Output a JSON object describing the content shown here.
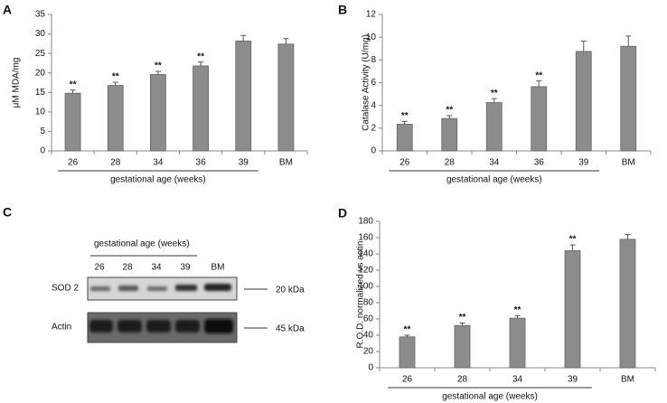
{
  "chart_data": [
    {
      "type": "bar",
      "panel": "A",
      "ylabel": "μM MDA/mg",
      "xlabel": "gestational age (weeks)",
      "categories": [
        "26",
        "28",
        "34",
        "36",
        "39",
        "BM"
      ],
      "values": [
        14.8,
        16.8,
        19.6,
        21.8,
        28.2,
        27.4
      ],
      "errors": [
        0.8,
        0.8,
        0.8,
        1.0,
        1.4,
        1.4
      ],
      "annotations": [
        "**",
        "**",
        "**",
        "**",
        null,
        null
      ],
      "ylim": [
        0,
        35
      ],
      "yticks": [
        0,
        5,
        10,
        15,
        20,
        25,
        30,
        35
      ],
      "color": "#8c8c8c"
    },
    {
      "type": "bar",
      "panel": "B",
      "ylabel": "Catalase Activity (U/mg)",
      "xlabel": "gestational age (weeks)",
      "categories": [
        "26",
        "28",
        "34",
        "36",
        "39",
        "BM"
      ],
      "values": [
        2.35,
        2.85,
        4.25,
        5.65,
        8.75,
        9.2
      ],
      "errors": [
        0.25,
        0.25,
        0.35,
        0.5,
        0.9,
        0.9
      ],
      "annotations": [
        "**",
        "**",
        "**",
        "**",
        null,
        null
      ],
      "ylim": [
        0,
        12
      ],
      "yticks": [
        0,
        2,
        4,
        6,
        8,
        10,
        12
      ],
      "color": "#8c8c8c"
    },
    {
      "type": "bar",
      "panel": "D",
      "ylabel": "R.O.D. normalized vs actin",
      "xlabel": "gestational age (weeks)",
      "categories": [
        "26",
        "28",
        "34",
        "39",
        "BM"
      ],
      "values": [
        38,
        52,
        61,
        144,
        158
      ],
      "errors": [
        2,
        3,
        3,
        7,
        6
      ],
      "annotations": [
        "**",
        "**",
        "**",
        "**",
        null
      ],
      "ylim": [
        0,
        180
      ],
      "yticks": [
        0,
        20,
        40,
        60,
        80,
        100,
        120,
        140,
        160,
        180
      ],
      "color": "#8c8c8c"
    }
  ],
  "blot": {
    "panel": "C",
    "title": "gestational age (weeks)",
    "lanes": [
      "26",
      "28",
      "34",
      "39",
      "BM"
    ],
    "rows": [
      {
        "label": "SOD 2",
        "size": "20 kDa"
      },
      {
        "label": "Actin",
        "size": "45 kDa"
      }
    ]
  }
}
